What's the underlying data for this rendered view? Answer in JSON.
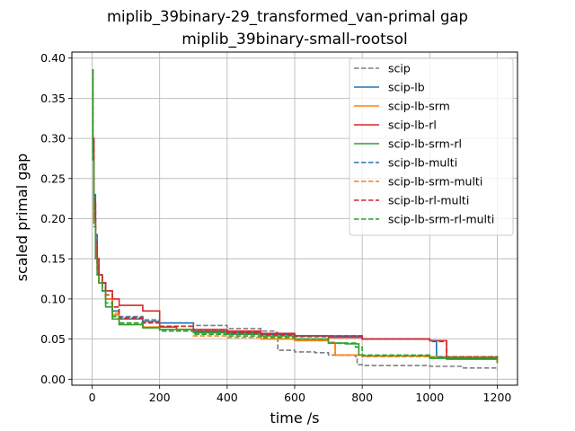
{
  "chart_data": {
    "type": "line",
    "title": "miplib_39binary-29_transformed_van-primal gap",
    "subtitle": "miplib_39binary-small-rootsol",
    "xlabel": "time /s",
    "ylabel": "scaled primal gap",
    "xlim": [
      -60,
      1260
    ],
    "ylim": [
      -0.0075,
      0.4075
    ],
    "xticks": [
      0,
      200,
      400,
      600,
      800,
      1000,
      1200
    ],
    "xtick_labels": [
      "0",
      "200",
      "400",
      "600",
      "800",
      "1000",
      "1200"
    ],
    "yticks": [
      0.0,
      0.05,
      0.1,
      0.15,
      0.2,
      0.25,
      0.3,
      0.35,
      0.4
    ],
    "ytick_labels": [
      "0.00",
      "0.05",
      "0.10",
      "0.15",
      "0.20",
      "0.25",
      "0.30",
      "0.35",
      "0.40"
    ],
    "grid": true,
    "legend_position": "top-right",
    "series": [
      {
        "name": "scip",
        "color": "#7f7f7f",
        "dash": "dashed",
        "x": [
          0,
          2,
          5,
          10,
          15,
          20,
          30,
          40,
          60,
          80,
          150,
          200,
          300,
          400,
          500,
          545,
          550,
          600,
          660,
          700,
          780,
          785,
          800,
          1000,
          1100,
          1200
        ],
        "y": [
          0.385,
          0.3,
          0.2,
          0.16,
          0.14,
          0.13,
          0.12,
          0.11,
          0.09,
          0.078,
          0.074,
          0.07,
          0.067,
          0.063,
          0.06,
          0.058,
          0.036,
          0.034,
          0.033,
          0.03,
          0.028,
          0.018,
          0.017,
          0.016,
          0.014,
          0.012
        ]
      },
      {
        "name": "scip-lb",
        "color": "#1f77b4",
        "dash": "solid",
        "x": [
          0,
          2,
          5,
          10,
          15,
          20,
          30,
          40,
          60,
          80,
          150,
          200,
          300,
          400,
          500,
          600,
          800,
          1000,
          1020,
          1200
        ],
        "y": [
          0.385,
          0.3,
          0.23,
          0.18,
          0.15,
          0.13,
          0.12,
          0.1,
          0.085,
          0.075,
          0.072,
          0.07,
          0.06,
          0.058,
          0.056,
          0.054,
          0.05,
          0.048,
          0.027,
          0.027
        ]
      },
      {
        "name": "scip-lb-srm",
        "color": "#ff7f0e",
        "dash": "solid",
        "x": [
          0,
          2,
          5,
          10,
          15,
          20,
          30,
          40,
          60,
          80,
          150,
          200,
          300,
          400,
          500,
          600,
          700,
          720,
          800,
          1000,
          1200
        ],
        "y": [
          0.385,
          0.28,
          0.2,
          0.16,
          0.14,
          0.12,
          0.11,
          0.1,
          0.08,
          0.068,
          0.065,
          0.062,
          0.058,
          0.056,
          0.05,
          0.048,
          0.045,
          0.03,
          0.029,
          0.028,
          0.02
        ]
      },
      {
        "name": "scip-lb-rl",
        "color": "#d62728",
        "dash": "solid",
        "x": [
          0,
          2,
          5,
          10,
          15,
          20,
          30,
          40,
          60,
          80,
          150,
          200,
          250,
          400,
          500,
          600,
          700,
          800,
          1000,
          1050,
          1200
        ],
        "y": [
          0.385,
          0.3,
          0.22,
          0.17,
          0.15,
          0.13,
          0.12,
          0.11,
          0.1,
          0.092,
          0.085,
          0.065,
          0.062,
          0.06,
          0.057,
          0.054,
          0.052,
          0.05,
          0.048,
          0.025,
          0.024
        ]
      },
      {
        "name": "scip-lb-srm-rl",
        "color": "#2ca02c",
        "dash": "solid",
        "x": [
          0,
          2,
          5,
          10,
          15,
          20,
          30,
          40,
          60,
          80,
          150,
          200,
          300,
          400,
          500,
          600,
          700,
          750,
          790,
          800,
          1000,
          1200
        ],
        "y": [
          0.385,
          0.28,
          0.2,
          0.15,
          0.13,
          0.12,
          0.11,
          0.09,
          0.075,
          0.068,
          0.064,
          0.062,
          0.058,
          0.056,
          0.054,
          0.05,
          0.045,
          0.044,
          0.03,
          0.029,
          0.026,
          0.02
        ]
      },
      {
        "name": "scip-lb-multi",
        "color": "#1f77b4",
        "dash": "dashed",
        "x": [
          0,
          2,
          5,
          10,
          15,
          20,
          30,
          40,
          60,
          80,
          150,
          200,
          300,
          400,
          500,
          600,
          800,
          1000,
          1020,
          1200
        ],
        "y": [
          0.385,
          0.29,
          0.21,
          0.17,
          0.14,
          0.13,
          0.115,
          0.1,
          0.085,
          0.077,
          0.07,
          0.066,
          0.06,
          0.057,
          0.055,
          0.053,
          0.05,
          0.048,
          0.028,
          0.027
        ]
      },
      {
        "name": "scip-lb-srm-multi",
        "color": "#ff7f0e",
        "dash": "dashed",
        "x": [
          0,
          2,
          5,
          10,
          15,
          20,
          30,
          40,
          60,
          80,
          150,
          200,
          300,
          400,
          500,
          600,
          700,
          720,
          800,
          1000,
          1200
        ],
        "y": [
          0.385,
          0.28,
          0.2,
          0.15,
          0.13,
          0.12,
          0.11,
          0.1,
          0.082,
          0.07,
          0.064,
          0.06,
          0.054,
          0.052,
          0.05,
          0.048,
          0.046,
          0.03,
          0.028,
          0.027,
          0.022
        ]
      },
      {
        "name": "scip-lb-rl-multi",
        "color": "#d62728",
        "dash": "dashed",
        "x": [
          0,
          2,
          5,
          10,
          15,
          20,
          30,
          40,
          60,
          80,
          150,
          200,
          300,
          400,
          500,
          600,
          800,
          1000,
          1050,
          1200
        ],
        "y": [
          0.385,
          0.3,
          0.22,
          0.17,
          0.15,
          0.13,
          0.12,
          0.105,
          0.09,
          0.076,
          0.07,
          0.066,
          0.06,
          0.058,
          0.056,
          0.054,
          0.05,
          0.047,
          0.028,
          0.027
        ]
      },
      {
        "name": "scip-lb-srm-rl-multi",
        "color": "#2ca02c",
        "dash": "dashed",
        "x": [
          0,
          2,
          5,
          10,
          15,
          20,
          30,
          40,
          60,
          80,
          150,
          200,
          300,
          400,
          500,
          600,
          700,
          780,
          800,
          1000,
          1200
        ],
        "y": [
          0.385,
          0.27,
          0.19,
          0.15,
          0.13,
          0.12,
          0.11,
          0.095,
          0.078,
          0.07,
          0.064,
          0.06,
          0.056,
          0.054,
          0.052,
          0.05,
          0.045,
          0.04,
          0.03,
          0.027,
          0.022
        ]
      }
    ]
  }
}
